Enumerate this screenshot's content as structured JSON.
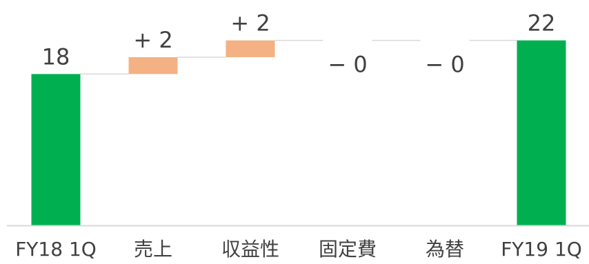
{
  "chart_data": {
    "type": "bar",
    "subtype": "waterfall",
    "title": "",
    "xlabel": "",
    "ylabel": "",
    "categories": [
      "FY18 1Q",
      "売上",
      "収益性",
      "固定費",
      "為替",
      "FY19 1Q"
    ],
    "steps": [
      {
        "category": "FY18 1Q",
        "kind": "total",
        "value": 18,
        "label": "18"
      },
      {
        "category": "売上",
        "kind": "delta",
        "value": 2,
        "label": "+ 2"
      },
      {
        "category": "収益性",
        "kind": "delta",
        "value": 2,
        "label": "+ 2"
      },
      {
        "category": "固定費",
        "kind": "delta",
        "value": 0,
        "label": "− 0"
      },
      {
        "category": "為替",
        "kind": "delta",
        "value": 0,
        "label": "− 0"
      },
      {
        "category": "FY19 1Q",
        "kind": "total",
        "value": 22,
        "label": "22"
      }
    ],
    "ylim": [
      0,
      22
    ],
    "grid": false,
    "legend": "none",
    "colors": {
      "total": "#00b050",
      "increase": "#f4b183",
      "decrease": "#f4b183",
      "connector": "#d9d9d9",
      "baseline": "#d9d9d9",
      "text": "#404040"
    }
  }
}
